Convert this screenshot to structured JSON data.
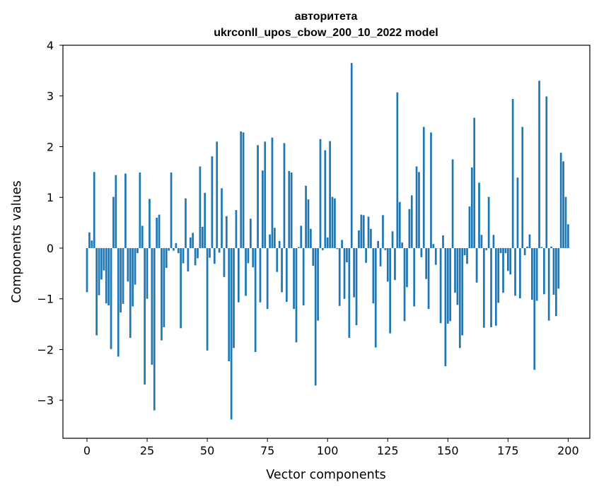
{
  "chart_data": {
    "type": "bar",
    "title_line1": "авторитета",
    "title_line2": "ukrconll_upos_cbow_200_10_2022 model",
    "xlabel": "Vector components",
    "ylabel": "Components values",
    "xlim": [
      -10,
      209
    ],
    "ylim": [
      -3.75,
      4.0
    ],
    "xticks": [
      0,
      25,
      50,
      75,
      100,
      125,
      150,
      175,
      200
    ],
    "yticks": [
      -3,
      -2,
      -1,
      0,
      1,
      2,
      3,
      4
    ],
    "xtick_labels": [
      "0",
      "25",
      "50",
      "75",
      "100",
      "125",
      "150",
      "175",
      "200"
    ],
    "ytick_labels": [
      "−3",
      "−2",
      "−1",
      "0",
      "1",
      "2",
      "3",
      "4"
    ],
    "bar_color": "#1f77b4",
    "grid": false,
    "values": [
      -0.87,
      0.31,
      0.15,
      1.5,
      -1.72,
      -0.93,
      -0.62,
      -0.44,
      -1.09,
      -1.13,
      -1.99,
      1.01,
      1.44,
      -2.14,
      -1.27,
      -1.1,
      1.47,
      -0.66,
      -1.77,
      -1.15,
      -0.72,
      -0.1,
      1.49,
      0.44,
      -2.69,
      -1.0,
      0.97,
      -2.3,
      -3.2,
      0.6,
      0.66,
      -1.82,
      -1.56,
      -0.39,
      -0.05,
      1.49,
      -0.05,
      0.1,
      -0.1,
      -1.58,
      -0.3,
      0.98,
      -0.46,
      0.21,
      0.3,
      -0.34,
      -0.2,
      1.61,
      0.42,
      1.09,
      -2.02,
      -0.19,
      1.81,
      -0.31,
      2.1,
      -0.09,
      1.18,
      -0.57,
      0.63,
      -2.23,
      -3.38,
      -1.97,
      0.75,
      -1.07,
      2.3,
      2.28,
      -0.94,
      -0.3,
      0.58,
      -0.38,
      -2.05,
      2.03,
      -1.07,
      1.53,
      2.1,
      -1.2,
      0.27,
      2.18,
      0.4,
      -0.47,
      0.14,
      -0.87,
      2.07,
      -1.06,
      1.52,
      1.49,
      -1.2,
      -1.86,
      0.02,
      0.44,
      -1.13,
      1.23,
      0.96,
      0.38,
      -0.35,
      -2.71,
      -1.43,
      2.15,
      -0.04,
      1.93,
      0.21,
      2.11,
      1.01,
      0.98,
      -0.02,
      -1.14,
      0.16,
      -1.0,
      -0.28,
      -1.77,
      3.65,
      -0.97,
      -1.52,
      0.35,
      0.66,
      0.65,
      -0.29,
      0.62,
      0.38,
      -1.09,
      -1.96,
      0.14,
      -0.36,
      0.65,
      -0.04,
      -0.66,
      -1.68,
      0.33,
      -0.63,
      3.07,
      0.91,
      0.11,
      -1.44,
      -0.77,
      0.77,
      1.04,
      -1.15,
      1.61,
      1.5,
      -0.18,
      2.39,
      -0.61,
      -1.2,
      2.28,
      0.08,
      -0.33,
      0.0,
      -1.48,
      0.25,
      -2.33,
      -1.49,
      -1.44,
      1.75,
      -0.88,
      -1.12,
      -1.97,
      -1.72,
      -0.14,
      -0.31,
      0.82,
      1.59,
      2.57,
      -0.68,
      1.29,
      0.26,
      -1.57,
      -0.04,
      1.01,
      -1.56,
      0.26,
      -1.53,
      -1.08,
      -0.1,
      -0.88,
      -0.1,
      -0.45,
      -0.52,
      2.94,
      -0.94,
      1.39,
      -0.99,
      2.39,
      -0.14,
      0.03,
      0.27,
      -1.02,
      -2.4,
      -1.04,
      3.3,
      0.02,
      -0.91,
      2.99,
      -1.43,
      0.03,
      -0.92,
      -1.34,
      -0.8,
      1.88,
      1.71,
      1.01,
      0.47
    ]
  }
}
